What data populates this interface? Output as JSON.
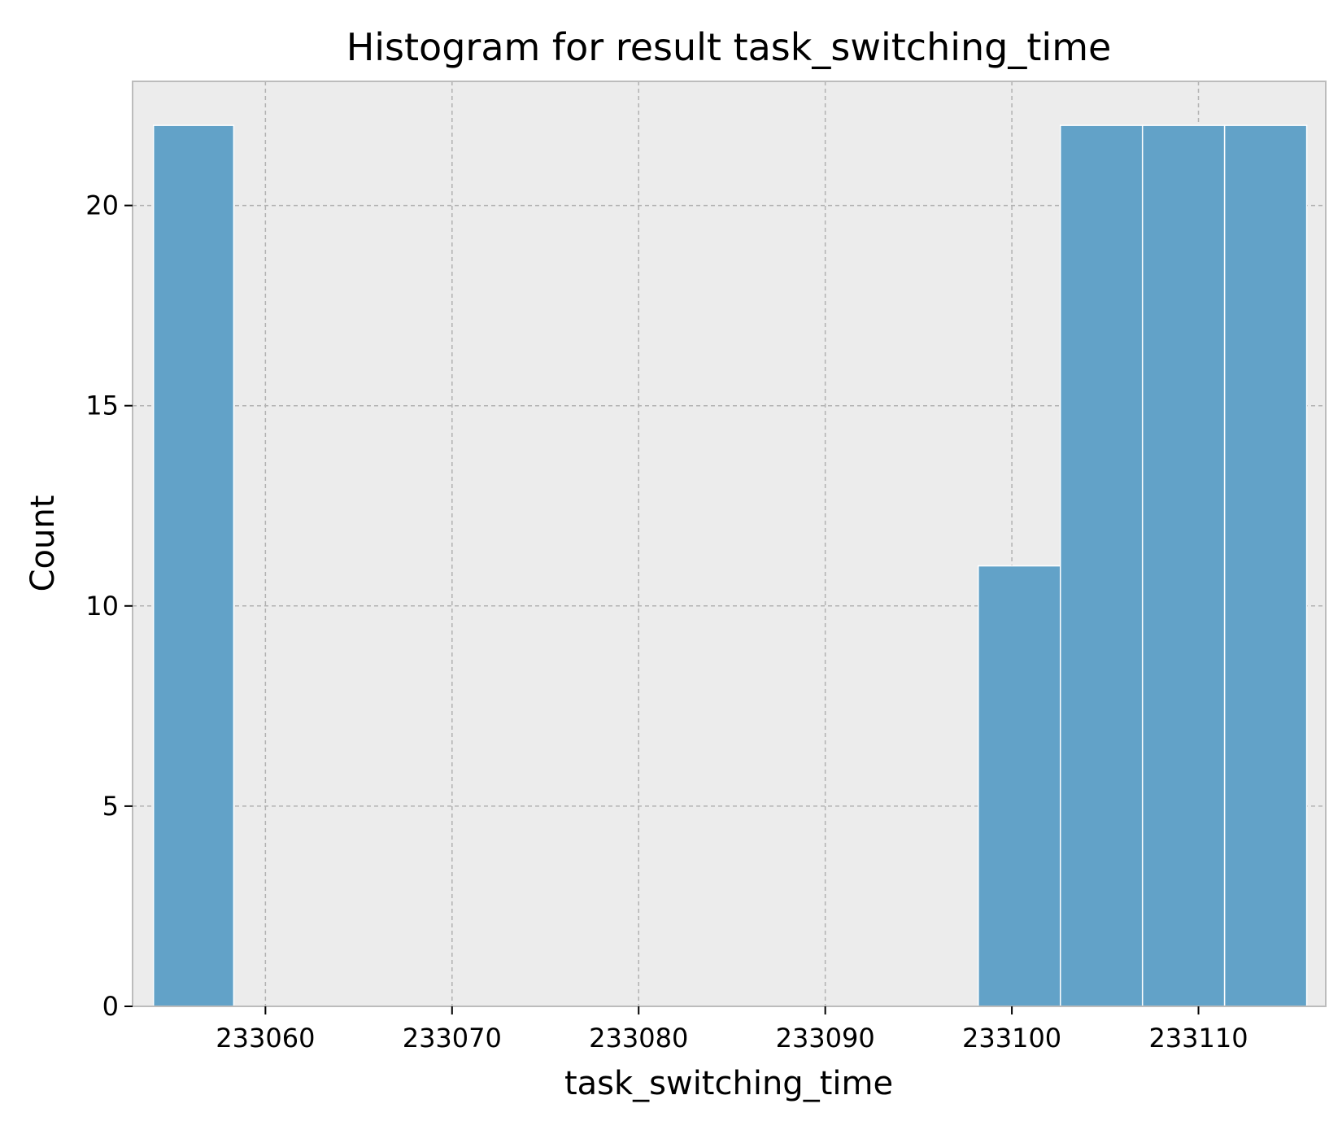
{
  "chart_data": {
    "type": "bar",
    "title": "Histogram for result task_switching_time",
    "xlabel": "task_switching_time",
    "ylabel": "Count",
    "xlim": [
      233052.88,
      233116.82
    ],
    "ylim": [
      0,
      23.1
    ],
    "xticks": [
      233060,
      233070,
      233080,
      233090,
      233100,
      233110
    ],
    "xtick_labels": [
      "233060",
      "233070",
      "233080",
      "233090",
      "233100",
      "233110"
    ],
    "yticks": [
      0,
      5,
      10,
      15,
      20
    ],
    "ytick_labels": [
      "0",
      "5",
      "10",
      "15",
      "20"
    ],
    "bins": [
      {
        "start": 233054.0,
        "end": 233058.3,
        "count": 22
      },
      {
        "start": 233098.2,
        "end": 233102.6,
        "count": 11
      },
      {
        "start": 233102.6,
        "end": 233107.0,
        "count": 22
      },
      {
        "start": 233107.0,
        "end": 233111.4,
        "count": 22
      },
      {
        "start": 233111.4,
        "end": 233115.8,
        "count": 22
      }
    ],
    "grid": true,
    "colors": {
      "bar": "#62a2c8",
      "background": "#ececec",
      "grid": "#b2b2b2",
      "spine": "#bcbcbc"
    }
  }
}
